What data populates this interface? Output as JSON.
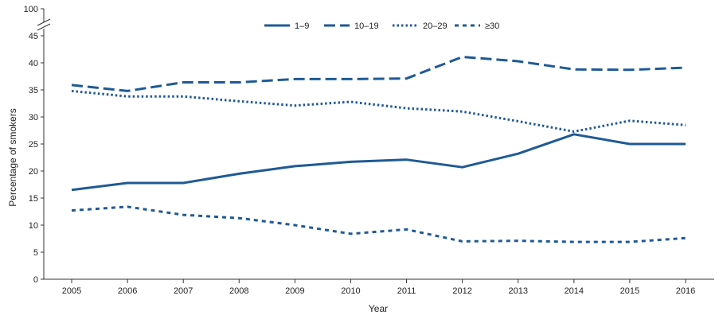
{
  "chart_data": {
    "type": "line",
    "title": "",
    "xlabel": "Year",
    "ylabel": "Percentage of smokers",
    "x": [
      2005,
      2006,
      2007,
      2008,
      2009,
      2010,
      2011,
      2012,
      2013,
      2014,
      2015,
      2016
    ],
    "x_tick_labels": [
      "2005",
      "2006",
      "2007",
      "2008",
      "2009",
      "2010",
      "2011",
      "2012",
      "2013",
      "2014",
      "2015",
      "2016"
    ],
    "y_ticks": [
      0,
      5,
      10,
      15,
      20,
      25,
      30,
      35,
      40,
      45
    ],
    "y_tick_labels": [
      "0",
      "5",
      "10",
      "15",
      "20",
      "25",
      "30",
      "35",
      "40",
      "45"
    ],
    "y_break_label": "100",
    "ylim": [
      0,
      45
    ],
    "axis_break": true,
    "grid": false,
    "legend_position": "top-center",
    "series": [
      {
        "name": "1–9",
        "style": "solid",
        "color": "#1f5a96",
        "values": [
          16.5,
          17.8,
          17.8,
          19.5,
          20.9,
          21.7,
          22.1,
          20.7,
          23.2,
          26.8,
          25.0,
          25.0
        ]
      },
      {
        "name": "10–19",
        "style": "dashed",
        "color": "#1f5a96",
        "values": [
          35.9,
          34.8,
          36.4,
          36.4,
          37.0,
          37.0,
          37.1,
          41.1,
          40.3,
          38.8,
          38.7,
          39.1
        ]
      },
      {
        "name": "20–29",
        "style": "dotted",
        "color": "#1f5a96",
        "values": [
          34.8,
          33.8,
          33.8,
          32.9,
          32.1,
          32.8,
          31.6,
          31.0,
          29.2,
          27.3,
          29.3,
          28.5
        ]
      },
      {
        "name": "≥30",
        "style": "short-dash",
        "color": "#1f5a96",
        "values": [
          12.7,
          13.4,
          11.9,
          11.3,
          10.0,
          8.4,
          9.2,
          7.0,
          7.1,
          6.9,
          6.9,
          7.6
        ]
      }
    ]
  }
}
